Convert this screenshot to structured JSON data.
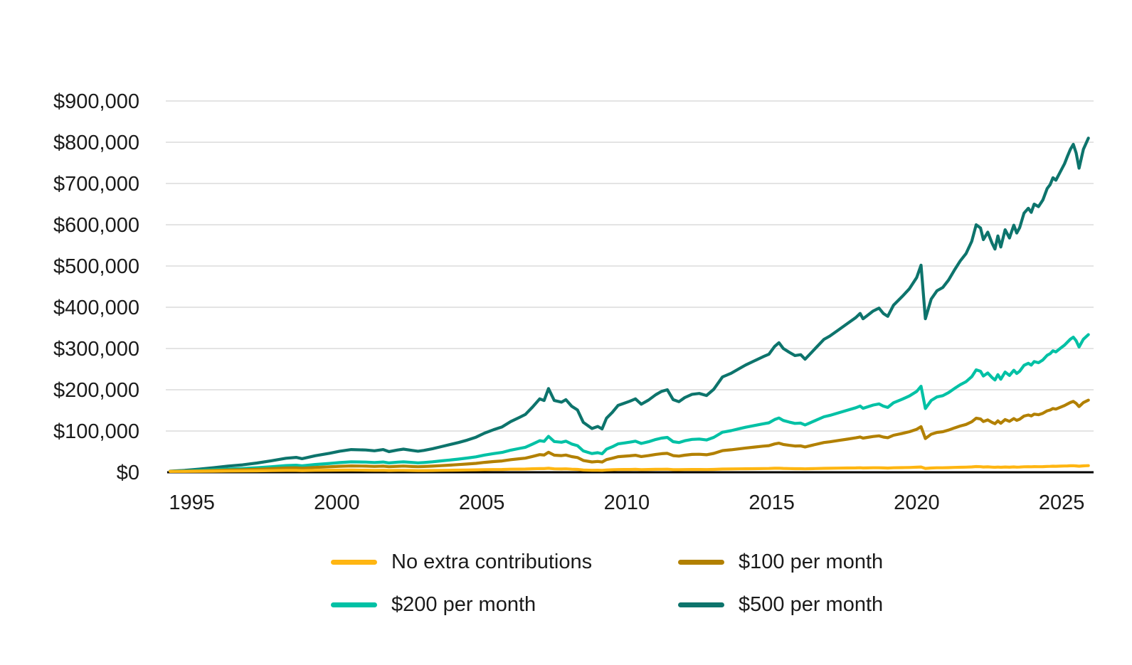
{
  "page": {
    "background": "#ffffff",
    "text_color": "#1b1b1b"
  },
  "chart_data": {
    "type": "line",
    "title": "",
    "xlabel": "",
    "ylabel": "",
    "xlim": [
      1994.2,
      2026.1
    ],
    "ylim": [
      0,
      900000
    ],
    "grid": "horizontal-only",
    "gridline_color": "#dcdcdc",
    "axis_line_color": "#000000",
    "legend_position": "bottom",
    "x_ticks": [
      {
        "value": 1995,
        "label": "1995"
      },
      {
        "value": 2000,
        "label": "2000"
      },
      {
        "value": 2005,
        "label": "2005"
      },
      {
        "value": 2010,
        "label": "2010"
      },
      {
        "value": 2015,
        "label": "2015"
      },
      {
        "value": 2020,
        "label": "2020"
      },
      {
        "value": 2025,
        "label": "2025"
      }
    ],
    "y_ticks": [
      {
        "value": 0,
        "label": "$0"
      },
      {
        "value": 100000,
        "label": "$100,000"
      },
      {
        "value": 200000,
        "label": "$200,000"
      },
      {
        "value": 300000,
        "label": "$300,000"
      },
      {
        "value": 400000,
        "label": "$400,000"
      },
      {
        "value": 500000,
        "label": "$500,000"
      },
      {
        "value": 600000,
        "label": "$600,000"
      },
      {
        "value": 700000,
        "label": "$700,000"
      },
      {
        "value": 800000,
        "label": "$800,000"
      },
      {
        "value": 900000,
        "label": "$900,000"
      }
    ],
    "x": [
      1994.25,
      1994.75,
      1995.25,
      1995.75,
      1996.25,
      1996.75,
      1997.25,
      1997.75,
      1998.25,
      1998.6,
      1998.8,
      1999.25,
      1999.75,
      2000.1,
      2000.5,
      2001,
      2001.3,
      2001.6,
      2001.8,
      2002.1,
      2002.3,
      2002.6,
      2002.8,
      2003,
      2003.3,
      2003.6,
      2003.9,
      2004.2,
      2004.5,
      2004.8,
      2005.1,
      2005.4,
      2005.7,
      2006,
      2006.3,
      2006.5,
      2006.75,
      2007,
      2007.15,
      2007.3,
      2007.5,
      2007.75,
      2007.9,
      2008.1,
      2008.3,
      2008.5,
      2008.8,
      2009,
      2009.15,
      2009.3,
      2009.5,
      2009.7,
      2009.9,
      2010.1,
      2010.3,
      2010.5,
      2010.75,
      2011,
      2011.2,
      2011.4,
      2011.6,
      2011.8,
      2012,
      2012.25,
      2012.5,
      2012.75,
      2013,
      2013.3,
      2013.6,
      2013.9,
      2014.1,
      2014.4,
      2014.7,
      2014.9,
      2015.1,
      2015.25,
      2015.4,
      2015.6,
      2015.8,
      2016,
      2016.15,
      2016.3,
      2016.5,
      2016.8,
      2017,
      2017.3,
      2017.6,
      2017.9,
      2018.05,
      2018.15,
      2018.3,
      2018.5,
      2018.7,
      2018.85,
      2019,
      2019.2,
      2019.5,
      2019.75,
      2020,
      2020.15,
      2020.3,
      2020.5,
      2020.7,
      2020.9,
      2021.1,
      2021.3,
      2021.5,
      2021.7,
      2021.9,
      2022.05,
      2022.2,
      2022.3,
      2022.45,
      2022.6,
      2022.7,
      2022.8,
      2022.9,
      2023.05,
      2023.2,
      2023.35,
      2023.45,
      2023.55,
      2023.7,
      2023.85,
      2023.95,
      2024.05,
      2024.2,
      2024.35,
      2024.5,
      2024.6,
      2024.7,
      2024.8,
      2024.95,
      2025.1,
      2025.2,
      2025.3,
      2025.4,
      2025.5,
      2025.6,
      2025.75,
      2025.92
    ],
    "series": [
      {
        "name": "No extra contributions",
        "color": "#FFB612",
        "values": [
          2000,
          2100,
          2300,
          2600,
          2900,
          3100,
          3500,
          3900,
          4400,
          4500,
          4000,
          4600,
          5000,
          5200,
          5400,
          5000,
          4700,
          4900,
          4300,
          4600,
          4700,
          4300,
          4000,
          4100,
          4300,
          4600,
          4900,
          5200,
          5500,
          5800,
          6200,
          6500,
          6800,
          7400,
          7600,
          7700,
          8400,
          9000,
          8800,
          9700,
          8200,
          8000,
          8200,
          7400,
          6900,
          5500,
          4800,
          5000,
          4700,
          5600,
          6100,
          6600,
          6700,
          6800,
          7000,
          6400,
          6700,
          7100,
          7300,
          7400,
          6400,
          6200,
          6500,
          6700,
          6800,
          6500,
          6900,
          7800,
          8000,
          8300,
          8500,
          8700,
          9000,
          9100,
          9600,
          9800,
          9300,
          9000,
          8700,
          8700,
          8300,
          8600,
          9000,
          9500,
          9700,
          10000,
          10300,
          10600,
          10800,
          10400,
          10600,
          10800,
          10900,
          10500,
          10200,
          10800,
          11200,
          11600,
          12200,
          12800,
          9300,
          10400,
          10800,
          10900,
          11200,
          11700,
          12100,
          12400,
          13000,
          13800,
          13500,
          12800,
          13100,
          12400,
          12000,
          12600,
          12000,
          12800,
          12300,
          12900,
          12400,
          12600,
          13300,
          13500,
          13200,
          13600,
          13400,
          13700,
          14200,
          14300,
          14600,
          14400,
          14800,
          15100,
          15400,
          15700,
          15900,
          15400,
          14700,
          15500,
          16000
        ]
      },
      {
        "name": "$100 per month",
        "color": "#B28000",
        "values": [
          2100,
          2600,
          3300,
          4300,
          5300,
          6100,
          7300,
          8700,
          10300,
          10800,
          9800,
          11700,
          13200,
          14400,
          15300,
          14800,
          14200,
          14900,
          13400,
          14500,
          15000,
          14000,
          13400,
          13900,
          14800,
          16100,
          17300,
          18600,
          20000,
          21600,
          24000,
          25800,
          27400,
          30500,
          32700,
          34200,
          38300,
          42800,
          41800,
          48400,
          41400,
          40400,
          41800,
          37900,
          35700,
          28600,
          25000,
          26200,
          24800,
          30700,
          33900,
          37700,
          38800,
          39800,
          41200,
          38100,
          40400,
          43300,
          45000,
          45900,
          40300,
          39200,
          41400,
          43200,
          43600,
          42400,
          45700,
          52400,
          54400,
          57000,
          58800,
          61000,
          63200,
          64500,
          68700,
          70600,
          67400,
          65400,
          63600,
          64000,
          61400,
          63900,
          67200,
          72000,
          73800,
          77000,
          80200,
          83500,
          85600,
          82700,
          84500,
          86800,
          88300,
          85400,
          83800,
          89600,
          94200,
          98300,
          104200,
          110600,
          81800,
          92300,
          96600,
          98300,
          102200,
          107400,
          112100,
          115900,
          122400,
          131000,
          129200,
          123000,
          126900,
          120900,
          117800,
          124700,
          118800,
          127800,
          123400,
          130100,
          125900,
          128700,
          136200,
          138800,
          136600,
          140900,
          139500,
          143000,
          149000,
          150800,
          154500,
          153100,
          157400,
          161700,
          165500,
          169200,
          171700,
          167100,
          159200,
          169000,
          174800
        ]
      },
      {
        "name": "$200 per month",
        "color": "#00C1A5",
        "values": [
          2200,
          3100,
          4400,
          6000,
          7700,
          9100,
          11100,
          13500,
          16200,
          17100,
          15600,
          18800,
          21400,
          23500,
          25200,
          24600,
          23600,
          24900,
          22600,
          24400,
          25200,
          23800,
          22800,
          23700,
          25400,
          27600,
          29700,
          31900,
          34500,
          37500,
          41700,
          45100,
          48100,
          53600,
          57800,
          60600,
          68200,
          76600,
          74900,
          87000,
          74500,
          72800,
          75300,
          68400,
          64500,
          51700,
          45300,
          47400,
          44800,
          55800,
          61700,
          68800,
          70800,
          72900,
          75400,
          69800,
          74000,
          79500,
          82800,
          84400,
          74200,
          72100,
          76300,
          79600,
          80500,
          78300,
          84500,
          97100,
          100800,
          105800,
          109100,
          113200,
          117400,
          119900,
          127800,
          131500,
          125600,
          121800,
          118400,
          119200,
          114600,
          119200,
          125400,
          134500,
          137800,
          144000,
          150200,
          156400,
          160500,
          155000,
          158400,
          162900,
          165700,
          160300,
          157300,
          168500,
          177100,
          185000,
          196100,
          208500,
          154400,
          174200,
          182500,
          185700,
          193100,
          203000,
          212100,
          219400,
          231800,
          248300,
          244900,
          233300,
          240700,
          229400,
          223600,
          236800,
          225600,
          242900,
          234600,
          247300,
          239400,
          244800,
          259200,
          264100,
          259900,
          268200,
          265600,
          272200,
          283700,
          287400,
          294400,
          291800,
          300100,
          308300,
          315600,
          322600,
          327500,
          318800,
          303600,
          322500,
          333600
        ]
      },
      {
        "name": "$500 per month",
        "color": "#0D746C",
        "values": [
          2500,
          4500,
          7500,
          11000,
          15000,
          18000,
          22500,
          28000,
          34000,
          36000,
          33000,
          40000,
          46000,
          51000,
          55000,
          54000,
          52000,
          55000,
          50000,
          54000,
          56000,
          53000,
          51000,
          53000,
          57000,
          62000,
          67000,
          72000,
          78000,
          85000,
          95000,
          103000,
          110000,
          123000,
          133000,
          140000,
          158000,
          178000,
          174000,
          203000,
          174000,
          170000,
          176000,
          160000,
          151000,
          121000,
          106000,
          111000,
          105000,
          131000,
          145000,
          162000,
          167000,
          172000,
          178000,
          165000,
          175000,
          188000,
          196000,
          200000,
          176000,
          171000,
          181000,
          189000,
          191000,
          186000,
          201000,
          231000,
          240000,
          252000,
          260000,
          270000,
          280000,
          286000,
          305000,
          314000,
          300000,
          291000,
          283000,
          285000,
          274000,
          285000,
          300000,
          322000,
          330000,
          345000,
          360000,
          375000,
          385000,
          372000,
          380000,
          391000,
          398000,
          385000,
          378000,
          405000,
          426000,
          445000,
          472000,
          502000,
          372000,
          420000,
          440000,
          448000,
          466000,
          490000,
          512000,
          530000,
          560000,
          600000,
          592000,
          564000,
          582000,
          555000,
          541000,
          573000,
          546000,
          588000,
          568000,
          599000,
          580000,
          593000,
          628000,
          640000,
          630000,
          650000,
          644000,
          660000,
          688000,
          697000,
          714000,
          708000,
          728000,
          748000,
          766000,
          783000,
          795000,
          774000,
          737000,
          783000,
          810000
        ]
      }
    ]
  }
}
